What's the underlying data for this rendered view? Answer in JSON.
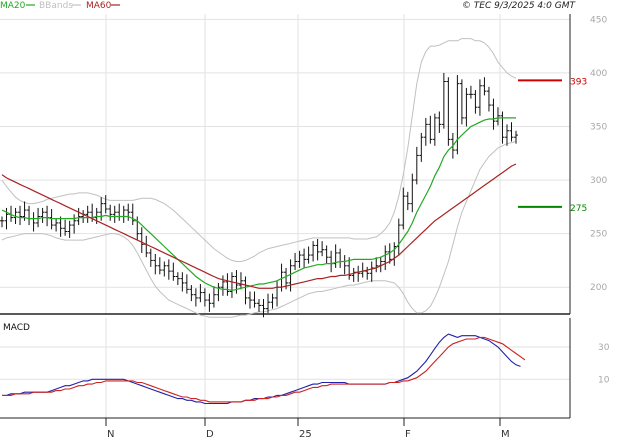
{
  "header": {
    "legend": [
      {
        "label": "MA20",
        "color": "#22aa22"
      },
      {
        "label": "BBands",
        "color": "#c0c0c0"
      },
      {
        "label": "MA60",
        "color": "#aa2222"
      }
    ],
    "copyright": "© TEC 9/3/2025 4:0 GMT"
  },
  "chart_data": [
    {
      "type": "ohlc",
      "title": "",
      "xlabel": "",
      "ylabel": "",
      "ylim": [
        175,
        455
      ],
      "y_ticks": [
        200,
        250,
        300,
        350,
        400,
        450
      ],
      "x_ticks": [
        "N",
        "D",
        "25",
        "F",
        "M"
      ],
      "grid": true,
      "legend_position": "top-left",
      "resistance": {
        "value": 393,
        "label": "393",
        "color": "#cc0000"
      },
      "support": {
        "value": 275,
        "label": "275",
        "color": "#008800"
      },
      "close": [
        262,
        268,
        265,
        270,
        266,
        272,
        264,
        260,
        266,
        270,
        265,
        258,
        260,
        255,
        252,
        258,
        262,
        266,
        268,
        270,
        265,
        270,
        278,
        273,
        268,
        270,
        266,
        272,
        270,
        262,
        250,
        240,
        232,
        225,
        220,
        216,
        220,
        215,
        210,
        208,
        204,
        198,
        193,
        190,
        195,
        188,
        185,
        193,
        200,
        205,
        196,
        210,
        202,
        206,
        190,
        188,
        185,
        183,
        180,
        186,
        190,
        200,
        214,
        204,
        220,
        224,
        230,
        226,
        230,
        239,
        233,
        235,
        228,
        222,
        232,
        224,
        220,
        211,
        214,
        213,
        215,
        213,
        218,
        220,
        224,
        233,
        226,
        238,
        258,
        285,
        278,
        300,
        323,
        340,
        352,
        338,
        358,
        352,
        392,
        338,
        328,
        390,
        358,
        380,
        380,
        368,
        388,
        383,
        370,
        355,
        360,
        340,
        346,
        340,
        342
      ],
      "series": [
        {
          "name": "MA20",
          "color": "#22aa22",
          "values": [
            272,
            270,
            268,
            266,
            265,
            265,
            264,
            264,
            264,
            265,
            265,
            264,
            264,
            264,
            264,
            264,
            264,
            265,
            265,
            265,
            265,
            266,
            266,
            267,
            266,
            266,
            266,
            266,
            266,
            264,
            262,
            258,
            254,
            250,
            246,
            242,
            238,
            234,
            230,
            226,
            222,
            218,
            214,
            210,
            207,
            204,
            202,
            200,
            199,
            198,
            198,
            197,
            198,
            199,
            200,
            201,
            202,
            203,
            203,
            204,
            205,
            206,
            208,
            210,
            212,
            214,
            216,
            218,
            219,
            220,
            221,
            221,
            222,
            222,
            223,
            224,
            224,
            225,
            226,
            226,
            226,
            226,
            226,
            227,
            228,
            230,
            232,
            235,
            240,
            246,
            252,
            260,
            270,
            278,
            286,
            294,
            304,
            312,
            322,
            328,
            332,
            338,
            342,
            346,
            350,
            352,
            354,
            356,
            357,
            357,
            358,
            358,
            358,
            358,
            358
          ]
        },
        {
          "name": "MA60",
          "color": "#aa2222",
          "values": [
            305,
            302,
            300,
            298,
            296,
            294,
            292,
            290,
            288,
            286,
            284,
            282,
            280,
            278,
            276,
            274,
            272,
            270,
            268,
            266,
            264,
            262,
            260,
            258,
            256,
            254,
            252,
            250,
            248,
            246,
            244,
            242,
            240,
            238,
            236,
            234,
            232,
            230,
            228,
            226,
            224,
            222,
            220,
            218,
            216,
            214,
            212,
            210,
            208,
            207,
            206,
            205,
            204,
            203,
            202,
            201,
            200,
            199,
            199,
            199,
            199,
            200,
            200,
            201,
            202,
            203,
            204,
            205,
            206,
            207,
            208,
            208,
            209,
            210,
            210,
            211,
            211,
            212,
            213,
            214,
            215,
            216,
            217,
            218,
            220,
            222,
            224,
            227,
            230,
            234,
            238,
            242,
            246,
            250,
            254,
            258,
            262,
            265,
            268,
            271,
            274,
            277,
            280,
            283,
            286,
            289,
            292,
            295,
            298,
            301,
            304,
            307,
            310,
            313,
            315
          ]
        },
        {
          "name": "BBands upper",
          "color": "#c0c0c0",
          "values": [
            300,
            294,
            289,
            284,
            281,
            279,
            278,
            278,
            279,
            280,
            282,
            283,
            284,
            285,
            286,
            287,
            287,
            288,
            288,
            288,
            287,
            286,
            284,
            282,
            281,
            281,
            281,
            281,
            281,
            281,
            282,
            283,
            283,
            283,
            282,
            280,
            278,
            275,
            272,
            268,
            264,
            260,
            256,
            252,
            248,
            244,
            240,
            236,
            233,
            230,
            227,
            225,
            224,
            224,
            225,
            227,
            229,
            232,
            234,
            236,
            237,
            238,
            239,
            240,
            241,
            242,
            243,
            244,
            245,
            246,
            246,
            246,
            246,
            246,
            246,
            246,
            246,
            246,
            245,
            245,
            245,
            245,
            246,
            247,
            250,
            254,
            260,
            270,
            285,
            305,
            330,
            360,
            390,
            410,
            420,
            425,
            425,
            426,
            428,
            430,
            430,
            430,
            432,
            432,
            432,
            430,
            430,
            428,
            424,
            418,
            410,
            405,
            400,
            397,
            395
          ]
        },
        {
          "name": "BBands lower",
          "color": "#c0c0c0",
          "values": [
            244,
            246,
            247,
            248,
            249,
            250,
            250,
            250,
            250,
            250,
            249,
            248,
            246,
            245,
            244,
            244,
            244,
            244,
            244,
            245,
            246,
            247,
            248,
            249,
            250,
            250,
            249,
            247,
            244,
            239,
            232,
            224,
            216,
            208,
            201,
            196,
            192,
            188,
            186,
            184,
            182,
            180,
            178,
            176,
            174,
            173,
            172,
            172,
            172,
            172,
            172,
            172,
            173,
            174,
            174,
            175,
            176,
            177,
            177,
            178,
            179,
            180,
            182,
            184,
            186,
            188,
            190,
            192,
            194,
            195,
            196,
            196,
            197,
            198,
            199,
            200,
            201,
            202,
            202,
            203,
            204,
            205,
            206,
            206,
            206,
            206,
            205,
            204,
            200,
            194,
            186,
            180,
            176,
            176,
            178,
            182,
            190,
            200,
            212,
            224,
            240,
            256,
            270,
            280,
            290,
            300,
            310,
            316,
            322,
            326,
            330,
            332,
            334,
            335,
            336
          ]
        }
      ]
    },
    {
      "type": "line",
      "title": "MACD",
      "ylim": [
        -14,
        48
      ],
      "y_ticks": [
        10,
        30
      ],
      "grid": true,
      "series": [
        {
          "name": "",
          "color": "#2222aa",
          "values": [
            0,
            0,
            1,
            1,
            1,
            2,
            2,
            2,
            2,
            2,
            2,
            3,
            4,
            5,
            6,
            6,
            7,
            8,
            9,
            9,
            10,
            10,
            10,
            10,
            10,
            10,
            10,
            10,
            9,
            8,
            7,
            6,
            5,
            4,
            3,
            2,
            1,
            0,
            -1,
            -2,
            -2,
            -3,
            -3,
            -4,
            -4,
            -5,
            -5,
            -5,
            -5,
            -5,
            -5,
            -4,
            -4,
            -4,
            -3,
            -3,
            -2,
            -2,
            -2,
            -1,
            -1,
            0,
            0,
            1,
            2,
            3,
            4,
            5,
            6,
            7,
            7,
            8,
            8,
            8,
            8,
            8,
            8,
            7,
            7,
            7,
            7,
            7,
            7,
            7,
            7,
            7,
            8,
            8,
            9,
            10,
            11,
            13,
            15,
            18,
            21,
            25,
            29,
            33,
            36,
            38,
            37,
            36,
            37,
            37,
            37,
            37,
            36,
            35,
            34,
            32,
            30,
            27,
            24,
            21,
            19,
            18
          ]
        },
        {
          "name": "",
          "color": "#cc2222",
          "values": [
            0,
            0,
            0,
            1,
            1,
            1,
            1,
            2,
            2,
            2,
            2,
            2,
            3,
            3,
            4,
            4,
            5,
            6,
            6,
            7,
            7,
            8,
            8,
            9,
            9,
            9,
            9,
            9,
            9,
            9,
            8,
            8,
            7,
            6,
            5,
            4,
            3,
            2,
            1,
            0,
            -1,
            -1,
            -2,
            -2,
            -3,
            -3,
            -4,
            -4,
            -4,
            -4,
            -4,
            -4,
            -4,
            -4,
            -3,
            -3,
            -3,
            -2,
            -2,
            -2,
            -1,
            -1,
            0,
            0,
            1,
            2,
            2,
            3,
            4,
            5,
            5,
            6,
            6,
            7,
            7,
            7,
            7,
            7,
            7,
            7,
            7,
            7,
            7,
            7,
            7,
            7,
            8,
            8,
            8,
            9,
            9,
            10,
            11,
            13,
            15,
            18,
            21,
            24,
            27,
            30,
            32,
            33,
            34,
            35,
            35,
            35,
            36,
            36,
            35,
            34,
            33,
            32,
            30,
            28,
            26,
            24,
            22
          ]
        }
      ]
    }
  ]
}
